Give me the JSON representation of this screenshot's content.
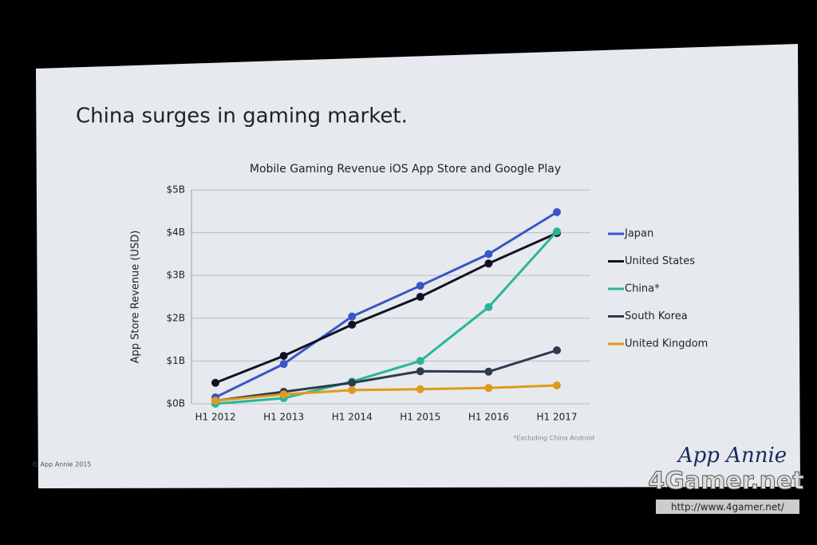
{
  "slide": {
    "title": "China surges in gaming market.",
    "copyright": "© App Annie 2015",
    "logo": "App Annie"
  },
  "chart_data": {
    "type": "line",
    "title": "Mobile Gaming Revenue iOS App Store and Google Play",
    "y_label": "App Store Revenue (USD)",
    "note": "*Excluding China Android",
    "categories": [
      "H1 2012",
      "H1 2013",
      "H1 2014",
      "H1 2015",
      "H1 2016",
      "H1 2017"
    ],
    "ylim": [
      0,
      5
    ],
    "yticks": [
      {
        "value": 0,
        "label": "$0B"
      },
      {
        "value": 1,
        "label": "$1B"
      },
      {
        "value": 2,
        "label": "$2B"
      },
      {
        "value": 3,
        "label": "$3B"
      },
      {
        "value": 4,
        "label": "$4B"
      },
      {
        "value": 5,
        "label": "$5B"
      }
    ],
    "grid": true,
    "series": [
      {
        "name": "Japan",
        "color": "#3a55c8",
        "values": [
          0.15,
          0.93,
          2.04,
          2.76,
          3.5,
          4.48
        ]
      },
      {
        "name": "United States",
        "color": "#111122",
        "values": [
          0.49,
          1.12,
          1.85,
          2.5,
          3.28,
          3.99
        ]
      },
      {
        "name": "China*",
        "color": "#2bb59a",
        "values": [
          0,
          0.13,
          0.52,
          1.0,
          2.26,
          4.03
        ]
      },
      {
        "name": "South Korea",
        "color": "#2e3a4e",
        "values": [
          0.07,
          0.28,
          0.49,
          0.76,
          0.75,
          1.25
        ]
      },
      {
        "name": "United Kingdom",
        "color": "#e09a1a",
        "values": [
          0.07,
          0.22,
          0.32,
          0.34,
          0.37,
          0.43
        ]
      }
    ]
  },
  "watermark": {
    "brand": "4Gamer.net",
    "url": "http://www.4gamer.net/"
  }
}
